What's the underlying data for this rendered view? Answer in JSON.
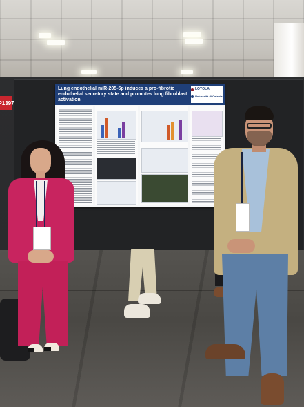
{
  "board": {
    "number_label": "P1397"
  },
  "poster": {
    "title": "Lung endothelial miR-205-5p induces a pro-fibrotic endothelial secretory state and promotes lung fibroblast activation",
    "logos": [
      "LOYOLA",
      "Università di Catania"
    ],
    "colors": {
      "header": "#1f3f78",
      "background": "#f5f6f7"
    }
  },
  "scene": {
    "people": [
      {
        "name": "woman-in-pink-suit",
        "outfit_color": "#c8245f"
      },
      {
        "name": "man-in-tan-blazer",
        "outfit_color": "#c4b080"
      }
    ],
    "floor_color": "#4a4844",
    "wall_color": "#2a2b2d"
  }
}
